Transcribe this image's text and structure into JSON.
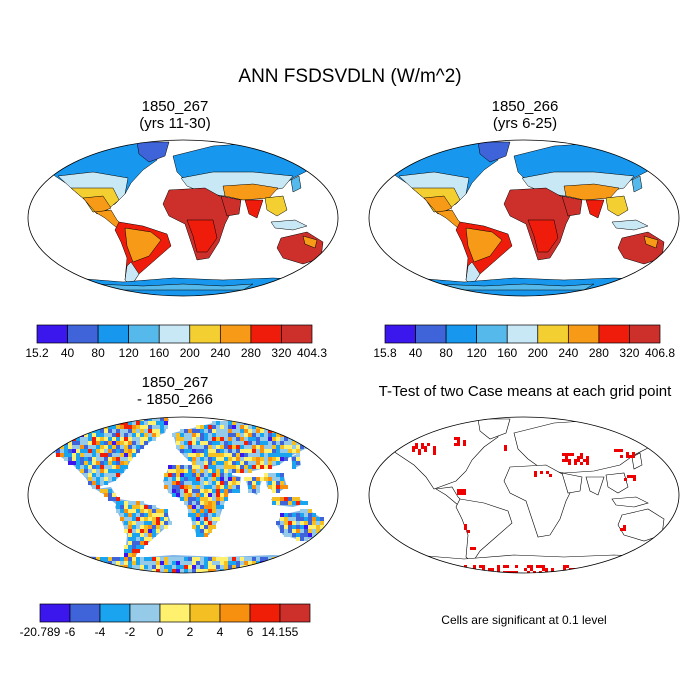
{
  "title": "ANN FSDSVDLN (W/m^2)",
  "note": "Cells are significant at 0.1 level",
  "palettes": {
    "field": [
      "#3b17ee",
      "#3f64d9",
      "#1797ee",
      "#55baeb",
      "#c9e8f5",
      "#f4cf32",
      "#f79a17",
      "#ef1c0b",
      "#cd2f2b"
    ],
    "diff": [
      "#3b17ee",
      "#3f64d9",
      "#1aa3ef",
      "#95cbe8",
      "#fff06e",
      "#f4bf22",
      "#f7900f",
      "#f01e07",
      "#cd2f2b"
    ]
  },
  "colors": {
    "land_outline": "#000000",
    "significance": "#ee0000"
  },
  "chart_data": [
    {
      "type": "heatmap",
      "map_projection": "robinson",
      "title_line1": "1850_267",
      "title_line2": "(yrs 11-30)",
      "variable": "FSDSVDLN",
      "units": "W/m^2",
      "colorbar": {
        "palette": "field",
        "labels": [
          "15.2",
          "40",
          "80",
          "120",
          "160",
          "200",
          "240",
          "280",
          "320",
          "404.3"
        ],
        "min": 15.2,
        "max": 404.3
      }
    },
    {
      "type": "heatmap",
      "map_projection": "robinson",
      "title_line1": "1850_266",
      "title_line2": "(yrs 6-25)",
      "variable": "FSDSVDLN",
      "units": "W/m^2",
      "colorbar": {
        "palette": "field",
        "labels": [
          "15.8",
          "40",
          "80",
          "120",
          "160",
          "200",
          "240",
          "280",
          "320",
          "406.8"
        ],
        "min": 15.8,
        "max": 406.8
      }
    },
    {
      "type": "heatmap",
      "map_projection": "robinson",
      "title_line1": "1850_267",
      "title_line2": "- 1850_266",
      "variable": "FSDSVDLN difference",
      "units": "W/m^2",
      "colorbar": {
        "palette": "diff",
        "labels": [
          "-20.789",
          "-6",
          "-4",
          "-2",
          "0",
          "2",
          "4",
          "6",
          "14.155"
        ],
        "min": -20.789,
        "max": 14.155
      }
    },
    {
      "type": "heatmap",
      "map_projection": "robinson",
      "title_line1": "T-Test of two Case means at each grid point",
      "significance_level": 0.1
    }
  ]
}
